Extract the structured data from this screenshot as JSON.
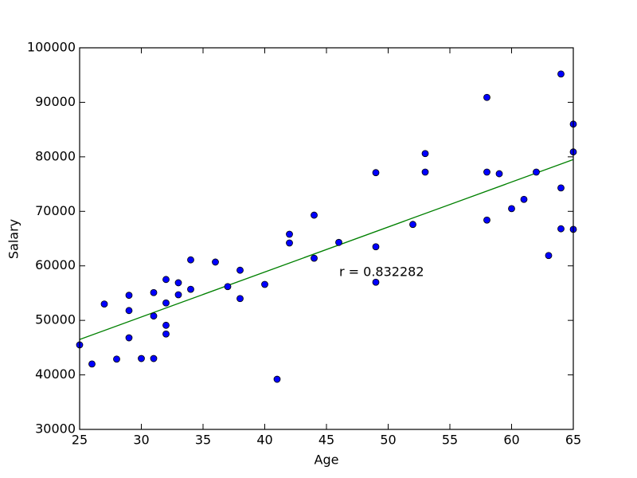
{
  "chart_data": {
    "type": "scatter",
    "x_label": "Age",
    "y_label": "Salary",
    "annotation": "r = 0.832282",
    "x": [
      25,
      26,
      27,
      28,
      29,
      29,
      29,
      30,
      31,
      31,
      31,
      32,
      32,
      32,
      32,
      33,
      33,
      34,
      34,
      36,
      37,
      38,
      38,
      40,
      41,
      42,
      42,
      44,
      44,
      46,
      49,
      49,
      49,
      52,
      53,
      53,
      58,
      58,
      58,
      59,
      60,
      61,
      62,
      63,
      64,
      64,
      64,
      65,
      65,
      65
    ],
    "values": [
      45500,
      42000,
      53000,
      42900,
      54600,
      51800,
      46800,
      43000,
      55100,
      50800,
      43000,
      57500,
      53200,
      49100,
      47500,
      56900,
      54700,
      61100,
      55700,
      60700,
      56200,
      59200,
      54000,
      56600,
      39200,
      65800,
      64200,
      69300,
      61400,
      64300,
      77100,
      63500,
      57000,
      67600,
      80600,
      77200,
      90900,
      77200,
      68400,
      76900,
      70500,
      72200,
      77200,
      61900,
      95200,
      74300,
      66800,
      86000,
      80900,
      66700
    ],
    "color": "#0000ff",
    "fit": {
      "x": [
        25,
        65
      ],
      "values": [
        46500,
        79500
      ],
      "color": "#008000"
    },
    "xlim": [
      25,
      65
    ],
    "xticks": [
      25,
      30,
      35,
      40,
      45,
      50,
      55,
      60,
      65
    ],
    "ylim": [
      30000,
      100000
    ],
    "yticks": [
      30000,
      40000,
      50000,
      60000,
      70000,
      80000,
      90000,
      100000
    ],
    "grid": false
  }
}
